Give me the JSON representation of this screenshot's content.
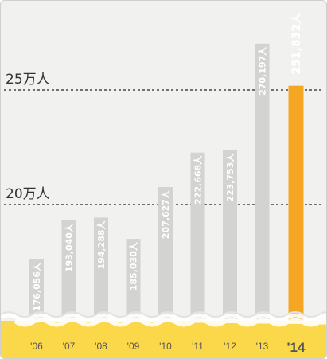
{
  "chart_data": {
    "type": "bar",
    "categories": [
      "'06",
      "'07",
      "'08",
      "'09",
      "'10",
      "'11",
      "'12",
      "'13",
      "'14"
    ],
    "values": [
      176056,
      193040,
      194288,
      185030,
      207627,
      222668,
      223753,
      270197,
      251832
    ],
    "value_labels": [
      "176,056人",
      "193,040人",
      "194,288人",
      "185,030人",
      "207,627人",
      "222,668人",
      "223,753人",
      "270,197人",
      "251,832人"
    ],
    "highlight_index": 8,
    "reference_lines": [
      {
        "value": 250000,
        "label": "25万人"
      },
      {
        "value": 200000,
        "label": "20万人"
      }
    ],
    "axis_break": true,
    "colors": {
      "bar": "#d3d3d2",
      "highlight": "#f5a623",
      "axis_band": "#fbd84a",
      "background": "#f1f1f0",
      "reference_line": "#222222"
    }
  }
}
